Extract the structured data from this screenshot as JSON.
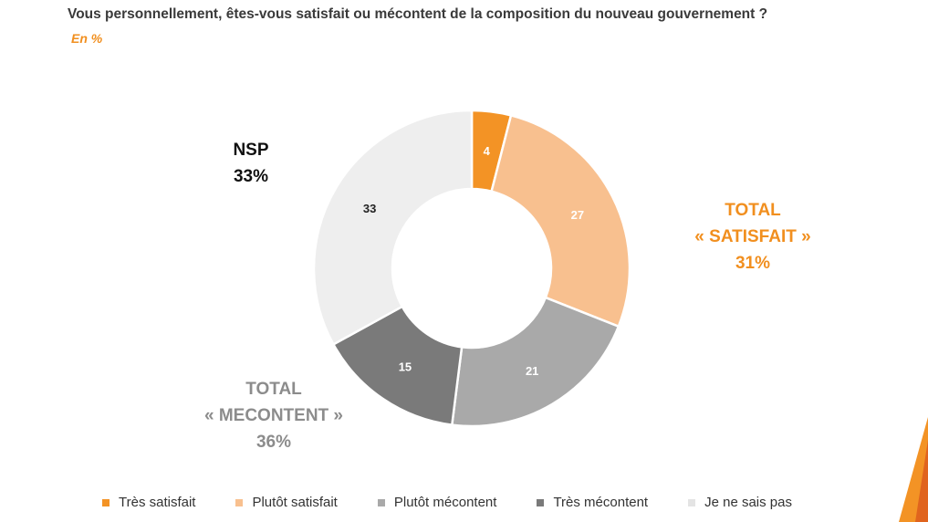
{
  "header": {
    "title": "Vous personnellement, êtes-vous satisfait ou mécontent de la composition du nouveau gouvernement ?",
    "subtitle": "En %"
  },
  "chart_data": {
    "type": "pie",
    "variant": "donut",
    "title": "Vous personnellement, êtes-vous satisfait ou mécontent de la composition du nouveau gouvernement ?",
    "unit": "En %",
    "categories": [
      "Très satisfait",
      "Plutôt satisfait",
      "Plutôt mécontent",
      "Très mécontent",
      "Je ne sais pas"
    ],
    "values": [
      4,
      27,
      21,
      15,
      33
    ],
    "colors": [
      "#f39325",
      "#f8c08f",
      "#a9a9a9",
      "#7a7a7a",
      "#eeeeee"
    ],
    "label_colors": [
      "#ffffff",
      "#ffffff",
      "#ffffff",
      "#ffffff",
      "#222222"
    ],
    "legend_position": "bottom",
    "annotations": {
      "nsp": {
        "line1": "NSP",
        "line2": "33%"
      },
      "satisfait": {
        "line1": "TOTAL",
        "line2": "« SATISFAIT »",
        "line3": "31%"
      },
      "mecontent": {
        "line1": "TOTAL",
        "line2": "« MECONTENT »",
        "line3": "36%"
      }
    }
  }
}
